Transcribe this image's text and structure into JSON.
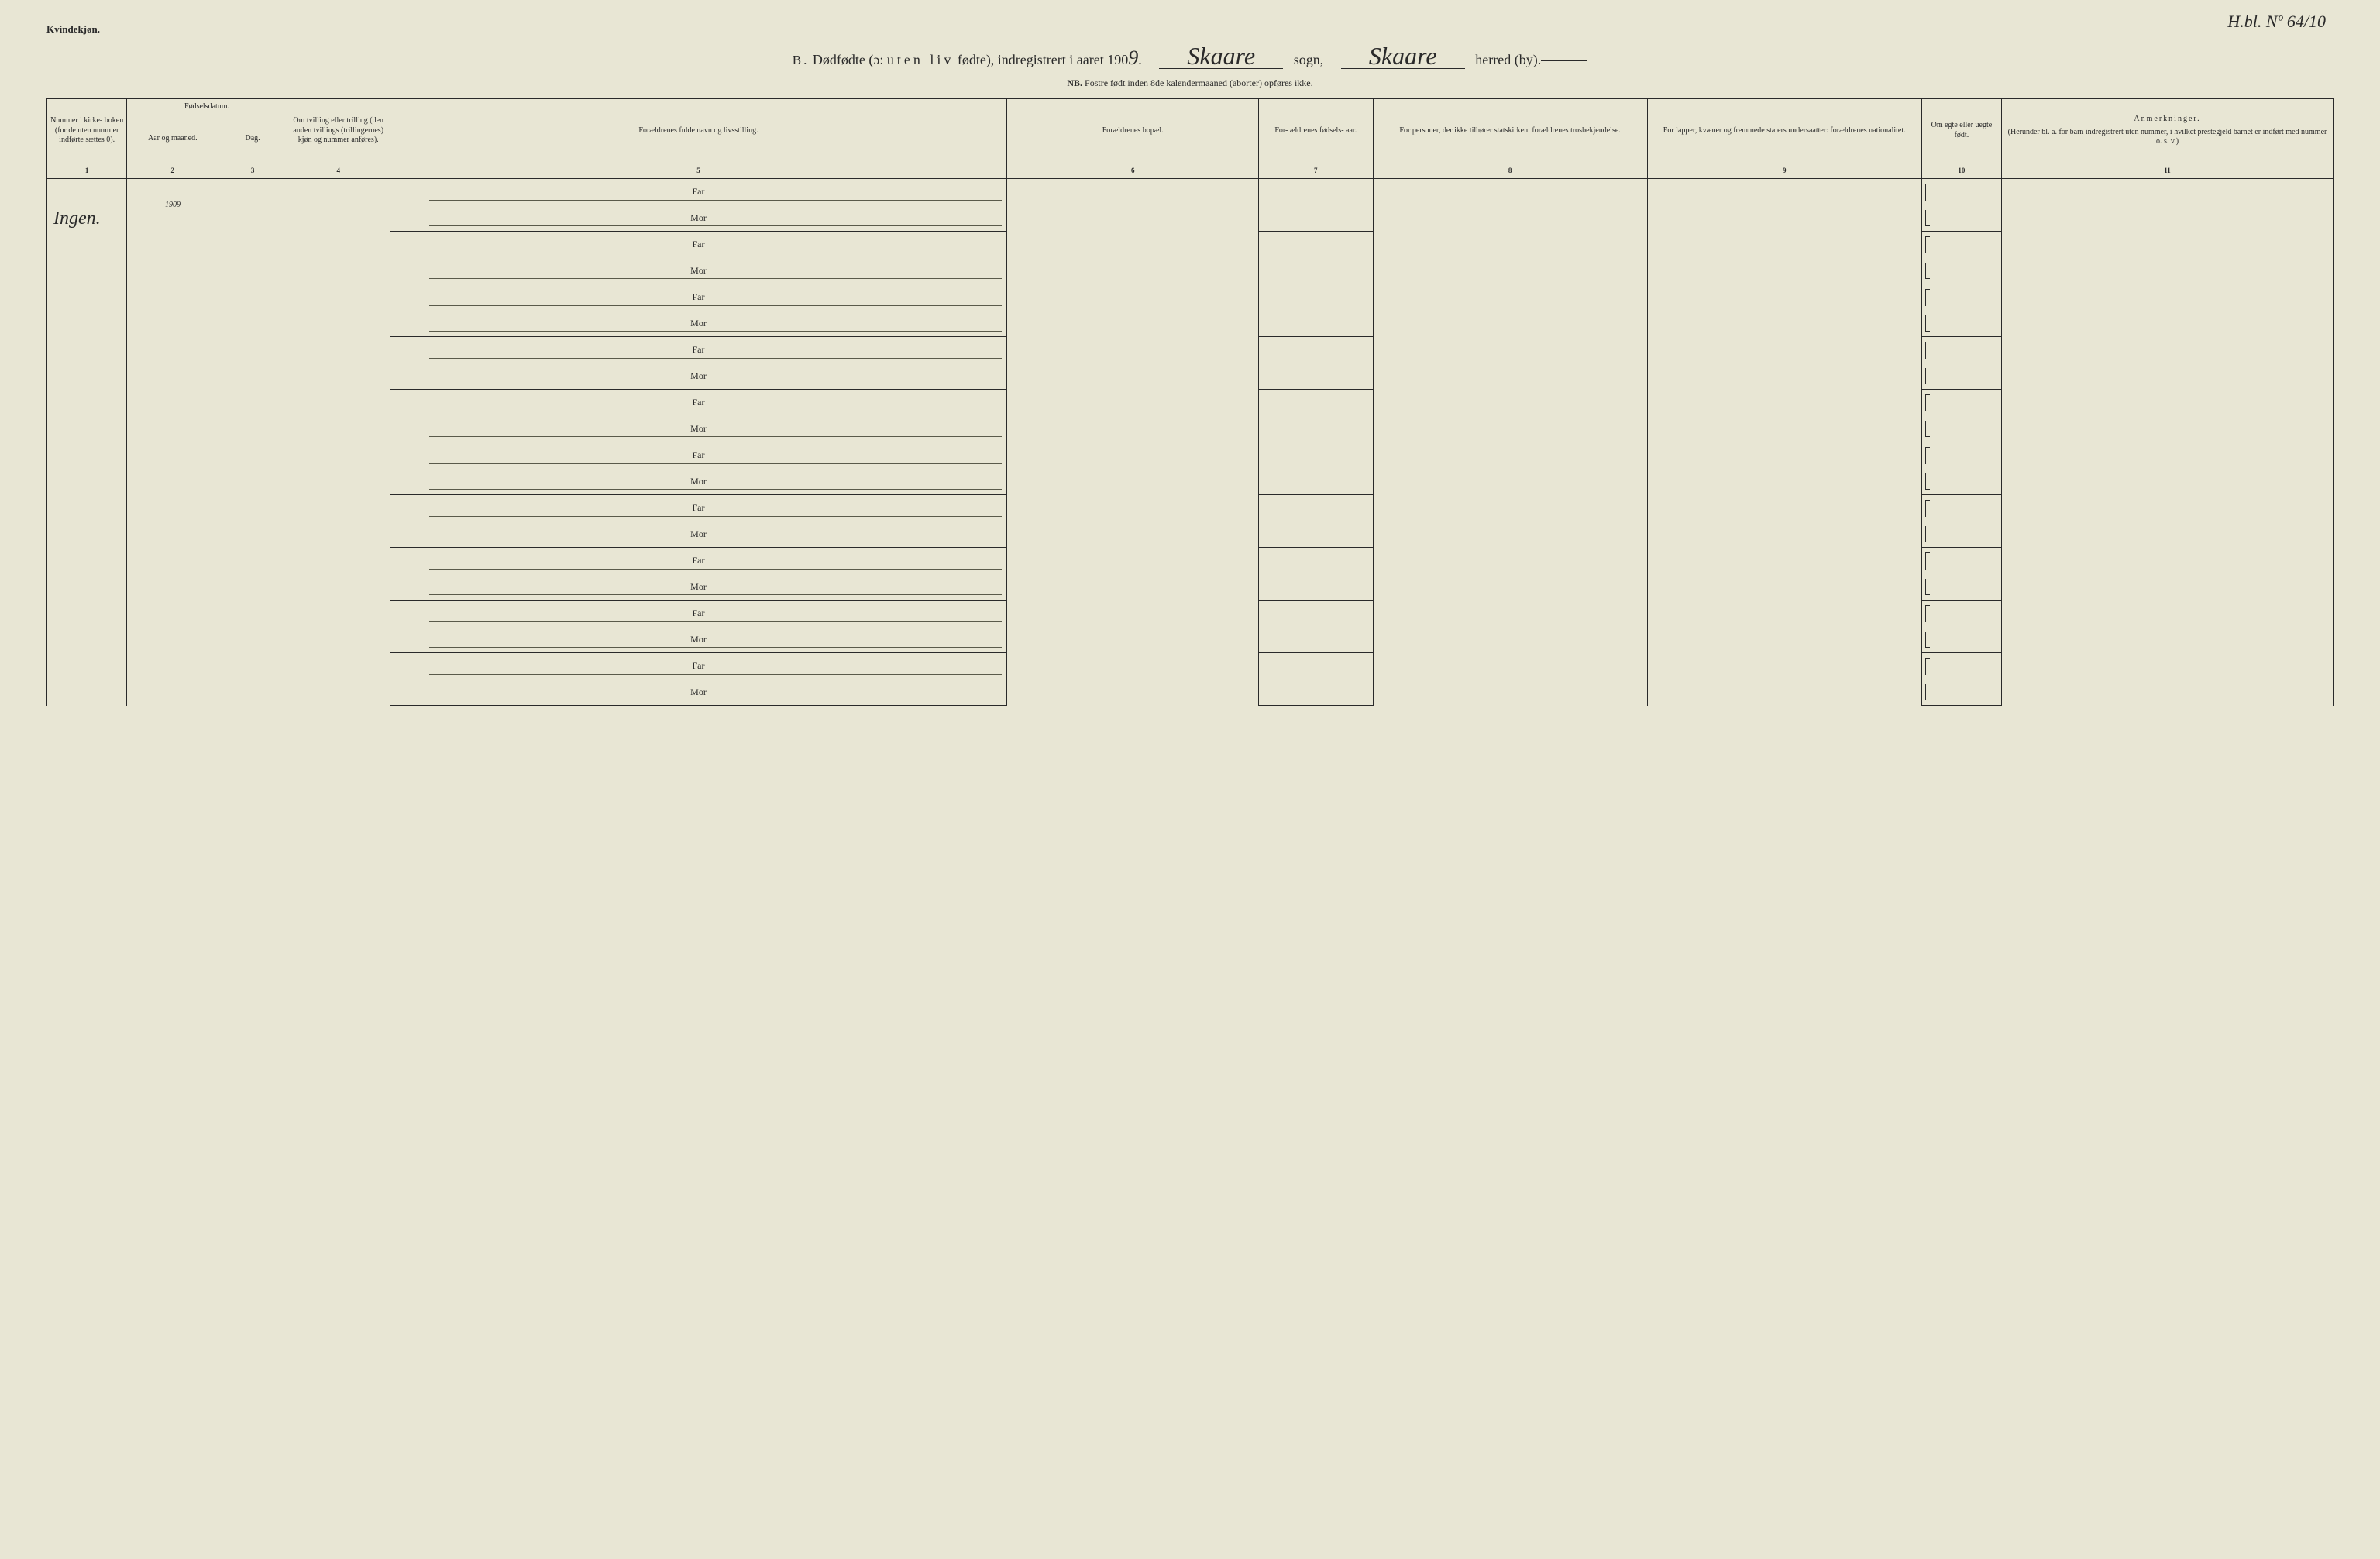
{
  "corner_note": "H.bl. Nº 64/10",
  "header_label": "Kvindekjøn.",
  "title": {
    "prefix": "B.",
    "main_part1": "Dødfødte (ɔ: ",
    "main_emph": "uten liv",
    "main_part2": " fødte), indregistrert i aaret 190",
    "year_digit": "9",
    "period": ".",
    "sogn_hand": "Skaare",
    "sogn_label": "sogn,",
    "herred_hand": "Skaare",
    "herred_label": "herred",
    "herred_struck": "(by)."
  },
  "subnote": {
    "nb": "NB.",
    "text": "Fostre født inden 8de kalendermaaned (aborter) opføres ikke."
  },
  "columns": {
    "c1": {
      "label": "Nummer i kirke- boken (for de uten nummer indførte sættes 0).",
      "num": "1"
    },
    "c2g": {
      "label": "Fødselsdatum."
    },
    "c2": {
      "label": "Aar og maaned.",
      "num": "2"
    },
    "c3": {
      "label": "Dag.",
      "num": "3"
    },
    "c4": {
      "label": "Om tvilling eller trilling (den anden tvillings (trillingernes) kjøn og nummer anføres).",
      "num": "4"
    },
    "c5": {
      "label": "Forældrenes fulde navn og livsstilling.",
      "num": "5"
    },
    "c6": {
      "label": "Forældrenes bopæl.",
      "num": "6"
    },
    "c7": {
      "label": "For- ældrenes fødsels- aar.",
      "num": "7"
    },
    "c8": {
      "label": "For personer, der ikke tilhører statskirken: forældrenes trosbekjendelse.",
      "num": "8"
    },
    "c9": {
      "label": "For lapper, kvæner og fremmede staters undersaatter: forældrenes nationalitet.",
      "num": "9"
    },
    "c10": {
      "label": "Om egte eller uegte født.",
      "num": "10"
    },
    "c11": {
      "label_top": "Anmerkninger.",
      "label_sub": "(Herunder bl. a. for barn indregistrert uten nummer, i hvilket prestegjeld barnet er indført med nummer o. s. v.)",
      "num": "11"
    }
  },
  "parent_labels": {
    "far": "Far",
    "mor": "Mor"
  },
  "handwriting": {
    "year": "1909",
    "ingen": "Ingen."
  },
  "row_count": 10,
  "colors": {
    "background": "#e8e6d4",
    "ink": "#2a2a2a",
    "faint_line": "#5a5a4a"
  },
  "typography": {
    "body_font": "Georgia / Times serif",
    "hand_font": "Brush Script cursive",
    "title_fontsize_pt": 14,
    "header_fontsize_pt": 8,
    "hand_fontsize_pt": 24
  }
}
